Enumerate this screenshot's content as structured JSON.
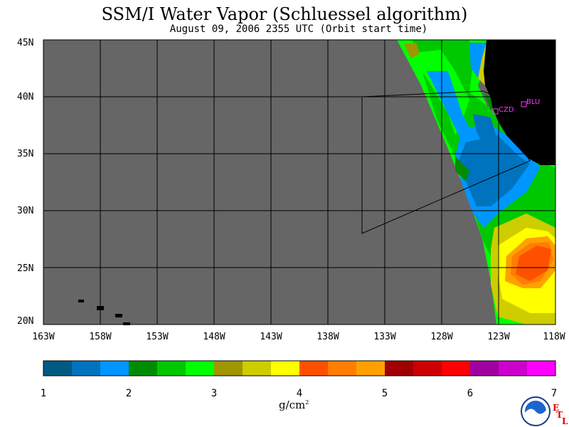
{
  "title": "SSM/I Water Vapor (Schluessel algorithm)",
  "subtitle": "August 09, 2006  2355 UTC  (Orbit start time)",
  "map": {
    "lon_range": [
      -163,
      -118
    ],
    "lat_range": [
      20,
      45
    ],
    "lat_ticks": [
      "45N",
      "40N",
      "35N",
      "30N",
      "25N",
      "20N"
    ],
    "lon_ticks": [
      "163W",
      "158W",
      "153W",
      "148W",
      "143W",
      "138W",
      "133W",
      "128W",
      "123W",
      "118W"
    ],
    "no_data_color": "#666666",
    "land_color": "#000000",
    "stations": [
      {
        "label": "CZD",
        "lon": -123.1,
        "lat": 38.6
      },
      {
        "label": "BLU",
        "lon": -120.7,
        "lat": 39.3
      }
    ]
  },
  "colorbar": {
    "ticks": [
      "1",
      "2",
      "3",
      "4",
      "5",
      "6",
      "7"
    ],
    "colors": [
      "#005a82",
      "#0073be",
      "#0096ff",
      "#008c00",
      "#00c800",
      "#00ff00",
      "#a09600",
      "#cdcd00",
      "#ffff00",
      "#ff5000",
      "#ff7d00",
      "#ffa000",
      "#a00000",
      "#cd0000",
      "#ff0000",
      "#a000a0",
      "#cd00cd",
      "#ff00ff"
    ],
    "units": "g/cm",
    "units_sup": "2"
  },
  "logo": {
    "noaa_text": "NOAA",
    "etl_letters": [
      "E",
      "T",
      "L"
    ]
  }
}
